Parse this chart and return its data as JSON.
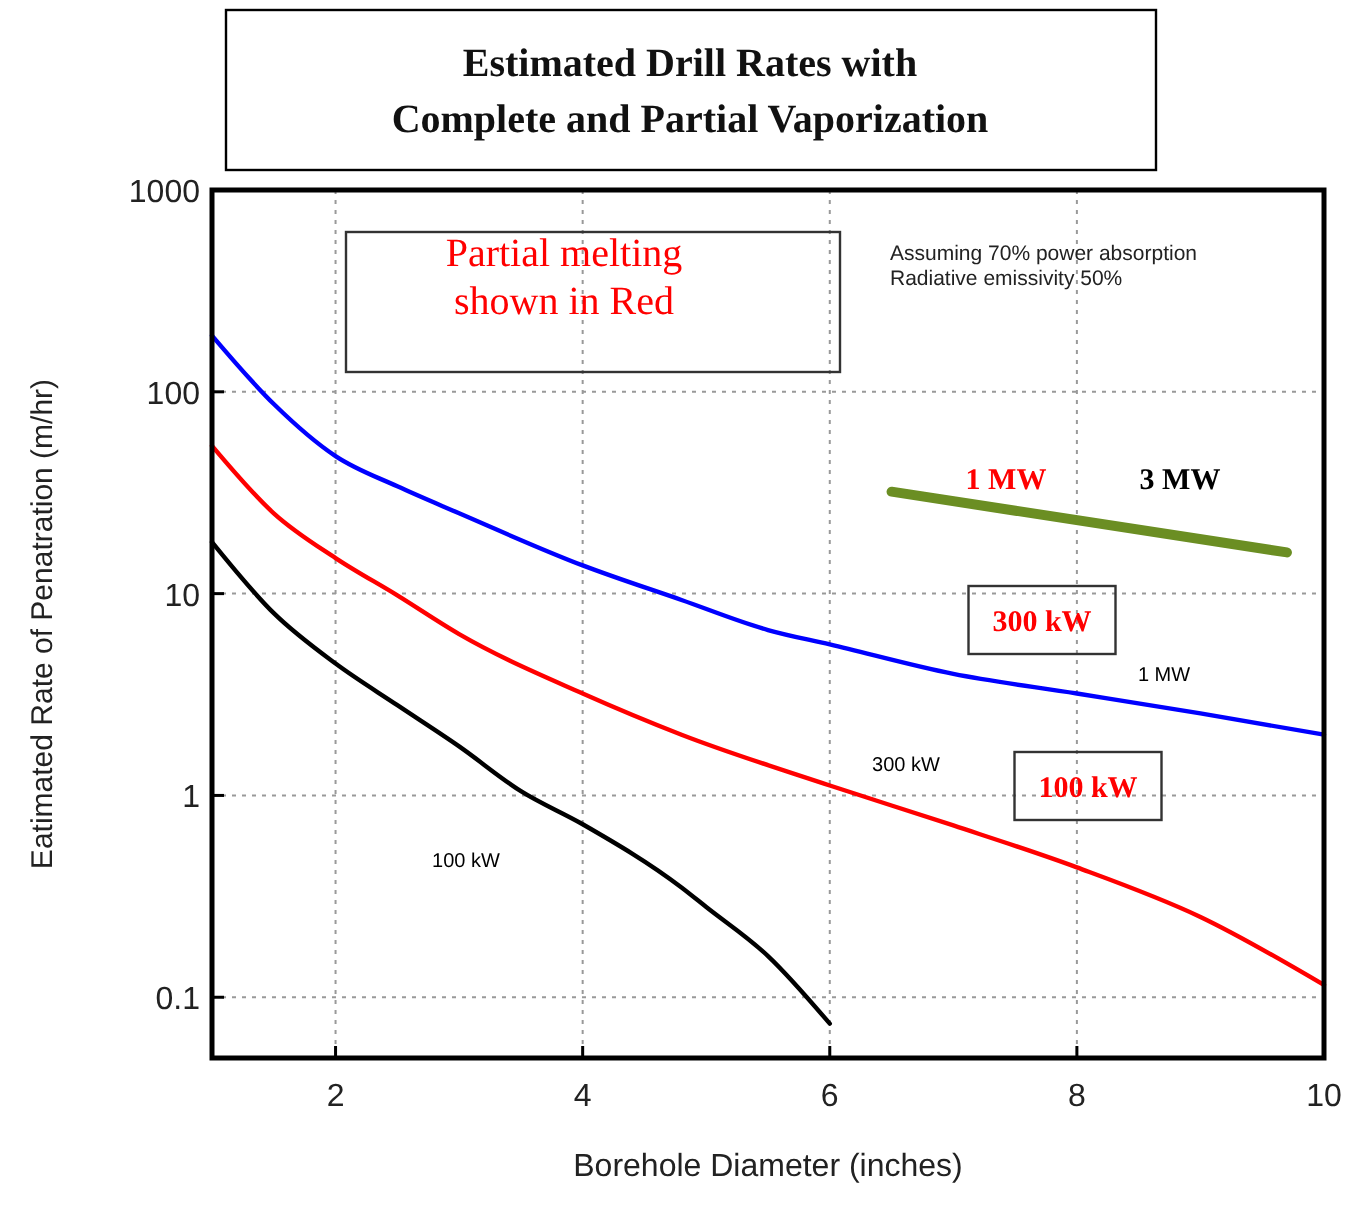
{
  "chart_data": {
    "type": "line",
    "title": "Estimated Drill Rates with\nComplete and Partial Vaporization",
    "xlabel": "Borehole Diameter (inches)",
    "ylabel": "Eatimated Rate of Penatration (m/hr)",
    "log": "y",
    "grid": true,
    "xlim": [
      1,
      10
    ],
    "xticks": [
      2,
      4,
      6,
      8,
      10
    ],
    "ylim": [
      0.05,
      1000
    ],
    "yticks": [
      0.1,
      1,
      10,
      100,
      1000
    ],
    "line_style": "solid",
    "marker": "none",
    "series": [
      {
        "color": "#0000ff",
        "x": [
          1,
          1.5,
          2,
          2.5,
          3,
          4,
          4.8,
          5.5,
          6,
          7,
          8,
          9,
          10
        ],
        "values": [
          190,
          87,
          48,
          34,
          25,
          13.8,
          9.3,
          6.6,
          5.6,
          4.0,
          3.2,
          2.55,
          2.0
        ]
      },
      {
        "color": "#ff0000",
        "x": [
          1,
          1.5,
          2,
          2.5,
          3,
          4,
          4.8,
          6,
          7,
          8,
          9,
          10
        ],
        "values": [
          54,
          25,
          15,
          9.8,
          6.3,
          3.2,
          2.0,
          1.12,
          0.71,
          0.44,
          0.25,
          0.115
        ]
      },
      {
        "color": "#000000",
        "x": [
          1,
          1.5,
          2,
          2.5,
          3,
          3.5,
          4,
          4.8,
          5,
          5.5,
          6
        ],
        "values": [
          18,
          8,
          4.5,
          2.8,
          1.75,
          1.05,
          0.72,
          0.35,
          0.28,
          0.16,
          0.074
        ]
      },
      {
        "color": "#6b8e23",
        "x": [
          6.5,
          9.7
        ],
        "values": [
          32,
          16
        ]
      }
    ],
    "annotations": [
      "Partial melting\nshown in Red",
      "Assuming 70% power absorption\nRadiative emissivity 50%",
      "1 MW",
      "3 MW",
      "300 kW",
      "100 kW",
      "1 MW",
      "300 kW",
      "100 kW"
    ]
  }
}
